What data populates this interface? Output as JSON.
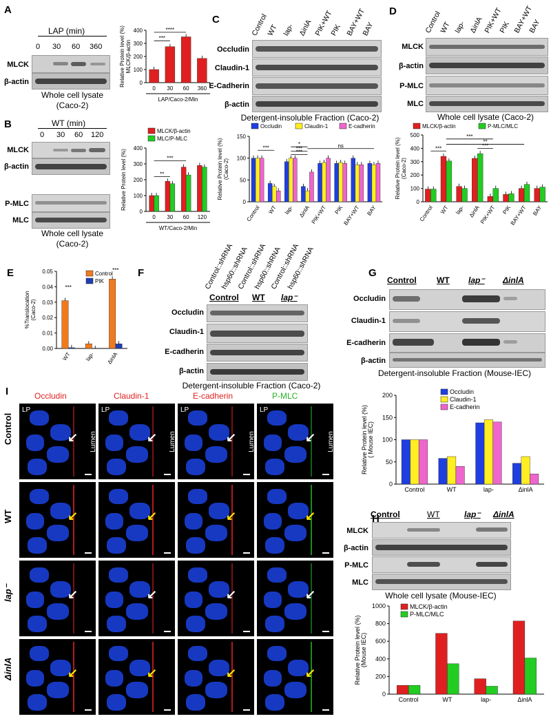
{
  "panels": {
    "A": "A",
    "B": "B",
    "C": "C",
    "D": "D",
    "E": "E",
    "F": "F",
    "G": "G",
    "H": "H",
    "I": "I"
  },
  "A": {
    "header": "LAP  (min)",
    "times": [
      "0",
      "30",
      "60",
      "360"
    ],
    "rows": [
      "MLCK",
      "β-actin"
    ],
    "caption1": "Whole cell lysate",
    "caption2": "(Caco-2)"
  },
  "B": {
    "header": "WT (min)",
    "times": [
      "0",
      "30",
      "60",
      "120"
    ],
    "rows": [
      "MLCK",
      "β-actin",
      "P-MLC",
      "MLC"
    ],
    "caption1": "Whole cell lysate",
    "caption2": "(Caco-2)"
  },
  "C": {
    "lanes": [
      "Control",
      "WT",
      "lap-",
      "ΔinlA",
      "PIK+WT",
      "PIK",
      "BAY+WT",
      "BAY"
    ],
    "rows": [
      "Occludin",
      "Claudin-1",
      "E-Cadherin",
      "β-actin"
    ],
    "caption": "Detergent-insoluble Fraction (Caco-2)"
  },
  "D": {
    "lanes": [
      "Control",
      "WT",
      "lap-",
      "ΔinlA",
      "PIK+WT",
      "PIK",
      "BAY+WT",
      "BAY"
    ],
    "rows": [
      "MLCK",
      "β-actin",
      "P-MLC",
      "MLC"
    ],
    "caption": "Whole cell lysate  (Caco-2)"
  },
  "F": {
    "lanes": [
      "Control::shRNA",
      "hsp60::shRNA",
      "Control::shRNA",
      "hsp60::shRNA",
      "Control::shRNA",
      "hsp60::shRNA"
    ],
    "groups": [
      "Control",
      "WT",
      "lap⁻"
    ],
    "rows": [
      "Occludin",
      "Claudin-1",
      "E-cadherin",
      "β-actin"
    ],
    "caption": "Detergent-insoluble Fraction (Caco-2)"
  },
  "G": {
    "groups": [
      "Control",
      "WT",
      "lap⁻",
      "ΔinlA"
    ],
    "rows": [
      "Occludin",
      "Claudin-1",
      "E-cadherin",
      "β-actin"
    ],
    "caption": "Detergent-insoluble Fraction (Mouse-IEC)"
  },
  "H": {
    "groups": [
      "Control",
      "WT",
      "lap⁻",
      "ΔinlA"
    ],
    "rows": [
      "MLCK",
      "β-actin",
      "P-MLC",
      "MLC"
    ],
    "caption": "Whole cell lysate (Mouse-IEC)"
  },
  "I": {
    "columns": [
      "Occludin",
      "Claudin-1",
      "E-cadherin",
      "P-MLC"
    ],
    "column_colors": [
      "#e02020",
      "#e02020",
      "#e02020",
      "#22b022"
    ],
    "rows": [
      "Control",
      "WT",
      "lap⁻",
      "ΔinlA"
    ],
    "lp": "LP",
    "lumen": "Lumen"
  },
  "chart_data": [
    {
      "id": "A",
      "type": "bar",
      "categories": [
        "0",
        "30",
        "60",
        "360"
      ],
      "values": [
        100,
        275,
        350,
        185
      ],
      "ylabel": "Relative Protein level (%)",
      "ylabel2": "MLCK/β-actin",
      "xlabel": "LAP/Caco-2/Min",
      "ylim": [
        0,
        400
      ],
      "yticks": [
        "0",
        "100",
        "200",
        "300",
        "400"
      ],
      "sig": [
        "***",
        "****"
      ],
      "colors": [
        "#e02020"
      ]
    },
    {
      "id": "B",
      "type": "bar",
      "categories": [
        "0",
        "30",
        "60",
        "120"
      ],
      "series": [
        {
          "name": "MLCK/β-actin",
          "values": [
            100,
            190,
            280,
            290
          ]
        },
        {
          "name": "MLC/P-MLC",
          "values": [
            100,
            175,
            230,
            280
          ]
        }
      ],
      "ylabel": "Relative Protein level (%)",
      "xlabel": "WT/Caco-2/Min",
      "ylim": [
        0,
        400
      ],
      "yticks": [
        "0",
        "100",
        "200",
        "300",
        "400"
      ],
      "sig": [
        "**",
        "***"
      ],
      "colors": [
        "#e02020",
        "#22cc22"
      ]
    },
    {
      "id": "C",
      "type": "bar",
      "categories": [
        "Control",
        "WT",
        "lap-",
        "ΔinlA",
        "PIK+WT",
        "PIK",
        "BAY+WT",
        "BAY"
      ],
      "series": [
        {
          "name": "Occludin",
          "values": [
            100,
            42,
            92,
            35,
            88,
            88,
            100,
            88
          ]
        },
        {
          "name": "Claudin-1",
          "values": [
            100,
            35,
            100,
            25,
            90,
            90,
            85,
            85
          ]
        },
        {
          "name": "E-cadherin",
          "values": [
            100,
            25,
            100,
            68,
            100,
            88,
            85,
            88
          ]
        }
      ],
      "ylabel": "Relative Protein level (%)",
      "ylabel2": "(Caco-2)",
      "ylim": [
        0,
        150
      ],
      "yticks": [
        "0",
        "50",
        "100",
        "150"
      ],
      "sig": [
        "***",
        "***",
        "***",
        "*",
        "ns"
      ],
      "colors": [
        "#1f3fe0",
        "#ffee22",
        "#ee66cc"
      ]
    },
    {
      "id": "D",
      "type": "bar",
      "categories": [
        "Control",
        "WT",
        "lap-",
        "ΔinlA",
        "PIK+WT",
        "PIK",
        "BAY+WT",
        "BAY"
      ],
      "series": [
        {
          "name": "MLCK/β-actin",
          "values": [
            95,
            340,
            115,
            325,
            40,
            55,
            100,
            100
          ]
        },
        {
          "name": "P-MLC/MLC",
          "values": [
            95,
            305,
            100,
            360,
            100,
            60,
            130,
            110
          ]
        }
      ],
      "ylabel": "Relative Protein level (%)",
      "ylabel2": "(Caco-2)",
      "ylim": [
        0,
        500
      ],
      "yticks": [
        "0",
        "100",
        "200",
        "300",
        "400",
        "500"
      ],
      "sig": [
        "***",
        "***",
        "***",
        "**"
      ],
      "colors": [
        "#e02020",
        "#22cc22"
      ]
    },
    {
      "id": "E",
      "type": "bar",
      "categories": [
        "WT",
        "lap-",
        "ΔinlA"
      ],
      "series": [
        {
          "name": "Control",
          "values": [
            0.031,
            0.003,
            0.045
          ]
        },
        {
          "name": "PIK",
          "values": [
            0.0005,
            0,
            0.003
          ]
        }
      ],
      "ylabel": "%Translocation",
      "ylabel2": "(Caco-2)",
      "ylim": [
        0,
        0.05
      ],
      "yticks": [
        "0.00",
        "0.01",
        "0.02",
        "0.03",
        "0.04",
        "0.05"
      ],
      "sig": [
        "***",
        "***"
      ],
      "colors": [
        "#f07a20",
        "#1f3fb0"
      ]
    },
    {
      "id": "G",
      "type": "bar",
      "categories": [
        "Control",
        "WT",
        "lap-",
        "ΔinlA"
      ],
      "series": [
        {
          "name": "Occludin",
          "values": [
            100,
            58,
            138,
            47
          ]
        },
        {
          "name": "Claudin-1",
          "values": [
            100,
            62,
            145,
            62
          ]
        },
        {
          "name": "E-cadherin",
          "values": [
            100,
            40,
            140,
            23
          ]
        }
      ],
      "ylabel": "Relative Protein level (%)",
      "ylabel2": "( Mouse IEC)",
      "ylim": [
        0,
        200
      ],
      "yticks": [
        "0",
        "50",
        "100",
        "150",
        "200"
      ],
      "colors": [
        "#1f3fe0",
        "#ffee22",
        "#ee66cc"
      ]
    },
    {
      "id": "H",
      "type": "bar",
      "categories": [
        "Control",
        "WT",
        "lap-",
        "ΔinlA"
      ],
      "series": [
        {
          "name": "MLCK/β-actin",
          "values": [
            100,
            690,
            175,
            830
          ]
        },
        {
          "name": "P-MLC/MLC",
          "values": [
            100,
            345,
            90,
            410
          ]
        }
      ],
      "ylabel": "Relative Protein level (%)",
      "ylabel2": "(Mouse IEC)",
      "ylim": [
        0,
        1000
      ],
      "yticks": [
        "0",
        "200",
        "400",
        "600",
        "800",
        "1000"
      ],
      "colors": [
        "#e02020",
        "#22cc22"
      ]
    }
  ]
}
